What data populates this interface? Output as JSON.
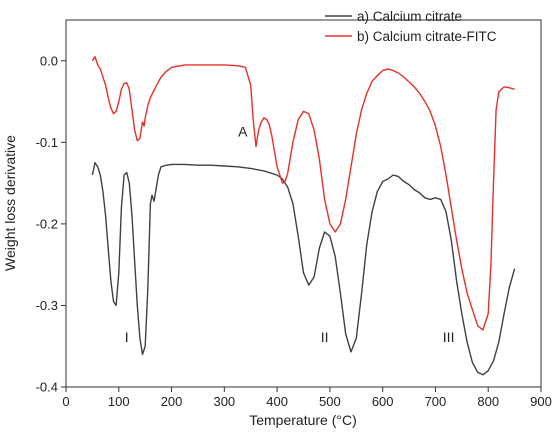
{
  "chart_data": {
    "type": "line",
    "title": "",
    "xlabel": "Temperature (°C)",
    "ylabel": "Weight loss derivative",
    "xlim": [
      0,
      900
    ],
    "ylim": [
      -0.4,
      0.05
    ],
    "xticks": [
      0,
      100,
      200,
      300,
      400,
      500,
      600,
      700,
      800,
      900
    ],
    "yticks": [
      0.0,
      -0.1,
      -0.2,
      -0.3,
      -0.4
    ],
    "xtick_labels": [
      "0",
      "100",
      "200",
      "300",
      "400",
      "500",
      "600",
      "700",
      "800",
      "900"
    ],
    "ytick_labels": [
      "0.0",
      "-0.1",
      "-0.2",
      "-0.3",
      "-0.4"
    ],
    "grid": false,
    "legend_position": "top-right",
    "annotations": [
      {
        "text": "A",
        "x": 335,
        "y": -0.093
      },
      {
        "text": "I",
        "x": 115,
        "y": -0.345
      },
      {
        "text": "II",
        "x": 490,
        "y": -0.345
      },
      {
        "text": "III",
        "x": 725,
        "y": -0.345
      }
    ],
    "series": [
      {
        "name": "a) Calcium citrate",
        "color": "#404040",
        "x": [
          50,
          55,
          60,
          65,
          70,
          75,
          80,
          85,
          90,
          95,
          100,
          105,
          110,
          115,
          120,
          125,
          130,
          135,
          140,
          145,
          150,
          155,
          160,
          163,
          167,
          170,
          175,
          180,
          190,
          200,
          225,
          250,
          275,
          300,
          325,
          350,
          375,
          400,
          410,
          420,
          430,
          440,
          450,
          460,
          470,
          480,
          490,
          500,
          510,
          520,
          530,
          540,
          550,
          560,
          570,
          580,
          590,
          600,
          610,
          620,
          630,
          640,
          650,
          660,
          670,
          680,
          690,
          700,
          710,
          720,
          730,
          740,
          750,
          760,
          770,
          780,
          790,
          800,
          810,
          820,
          830,
          840,
          850
        ],
        "y": [
          -0.14,
          -0.125,
          -0.13,
          -0.14,
          -0.16,
          -0.19,
          -0.23,
          -0.27,
          -0.295,
          -0.3,
          -0.26,
          -0.18,
          -0.14,
          -0.137,
          -0.15,
          -0.19,
          -0.245,
          -0.3,
          -0.34,
          -0.36,
          -0.35,
          -0.28,
          -0.175,
          -0.165,
          -0.172,
          -0.16,
          -0.14,
          -0.13,
          -0.128,
          -0.127,
          -0.127,
          -0.128,
          -0.128,
          -0.129,
          -0.13,
          -0.132,
          -0.135,
          -0.14,
          -0.145,
          -0.155,
          -0.175,
          -0.215,
          -0.26,
          -0.275,
          -0.265,
          -0.23,
          -0.21,
          -0.215,
          -0.24,
          -0.285,
          -0.335,
          -0.357,
          -0.34,
          -0.285,
          -0.225,
          -0.185,
          -0.16,
          -0.148,
          -0.145,
          -0.14,
          -0.142,
          -0.148,
          -0.152,
          -0.158,
          -0.162,
          -0.168,
          -0.17,
          -0.168,
          -0.17,
          -0.185,
          -0.22,
          -0.27,
          -0.31,
          -0.345,
          -0.37,
          -0.382,
          -0.385,
          -0.38,
          -0.368,
          -0.345,
          -0.31,
          -0.278,
          -0.255
        ]
      },
      {
        "name": "b) Calcium citrate-FITC",
        "color": "#e8302a",
        "x": [
          50,
          55,
          60,
          65,
          70,
          75,
          80,
          85,
          90,
          95,
          100,
          105,
          110,
          115,
          120,
          125,
          130,
          135,
          140,
          145,
          148,
          150,
          155,
          160,
          170,
          180,
          190,
          200,
          225,
          250,
          275,
          300,
          325,
          340,
          350,
          355,
          360,
          365,
          370,
          375,
          380,
          385,
          390,
          400,
          410,
          415,
          420,
          430,
          440,
          450,
          460,
          470,
          480,
          490,
          500,
          510,
          520,
          530,
          540,
          550,
          560,
          570,
          580,
          590,
          600,
          610,
          620,
          630,
          640,
          650,
          660,
          670,
          680,
          690,
          700,
          710,
          720,
          730,
          740,
          750,
          760,
          770,
          780,
          790,
          800,
          805,
          810,
          815,
          820,
          830,
          840,
          850
        ],
        "y": [
          0.0,
          0.005,
          -0.005,
          -0.01,
          -0.02,
          -0.03,
          -0.045,
          -0.058,
          -0.065,
          -0.062,
          -0.05,
          -0.035,
          -0.028,
          -0.027,
          -0.035,
          -0.06,
          -0.085,
          -0.098,
          -0.095,
          -0.075,
          -0.08,
          -0.07,
          -0.055,
          -0.045,
          -0.032,
          -0.02,
          -0.013,
          -0.008,
          -0.005,
          -0.005,
          -0.005,
          -0.005,
          -0.006,
          -0.008,
          -0.03,
          -0.075,
          -0.105,
          -0.085,
          -0.075,
          -0.07,
          -0.072,
          -0.078,
          -0.092,
          -0.13,
          -0.15,
          -0.148,
          -0.138,
          -0.1,
          -0.072,
          -0.062,
          -0.065,
          -0.085,
          -0.12,
          -0.17,
          -0.2,
          -0.21,
          -0.2,
          -0.17,
          -0.13,
          -0.09,
          -0.06,
          -0.04,
          -0.025,
          -0.018,
          -0.012,
          -0.01,
          -0.012,
          -0.015,
          -0.02,
          -0.026,
          -0.032,
          -0.04,
          -0.05,
          -0.062,
          -0.08,
          -0.105,
          -0.14,
          -0.18,
          -0.22,
          -0.255,
          -0.285,
          -0.305,
          -0.325,
          -0.33,
          -0.31,
          -0.25,
          -0.15,
          -0.06,
          -0.038,
          -0.032,
          -0.033,
          -0.035
        ]
      }
    ]
  }
}
